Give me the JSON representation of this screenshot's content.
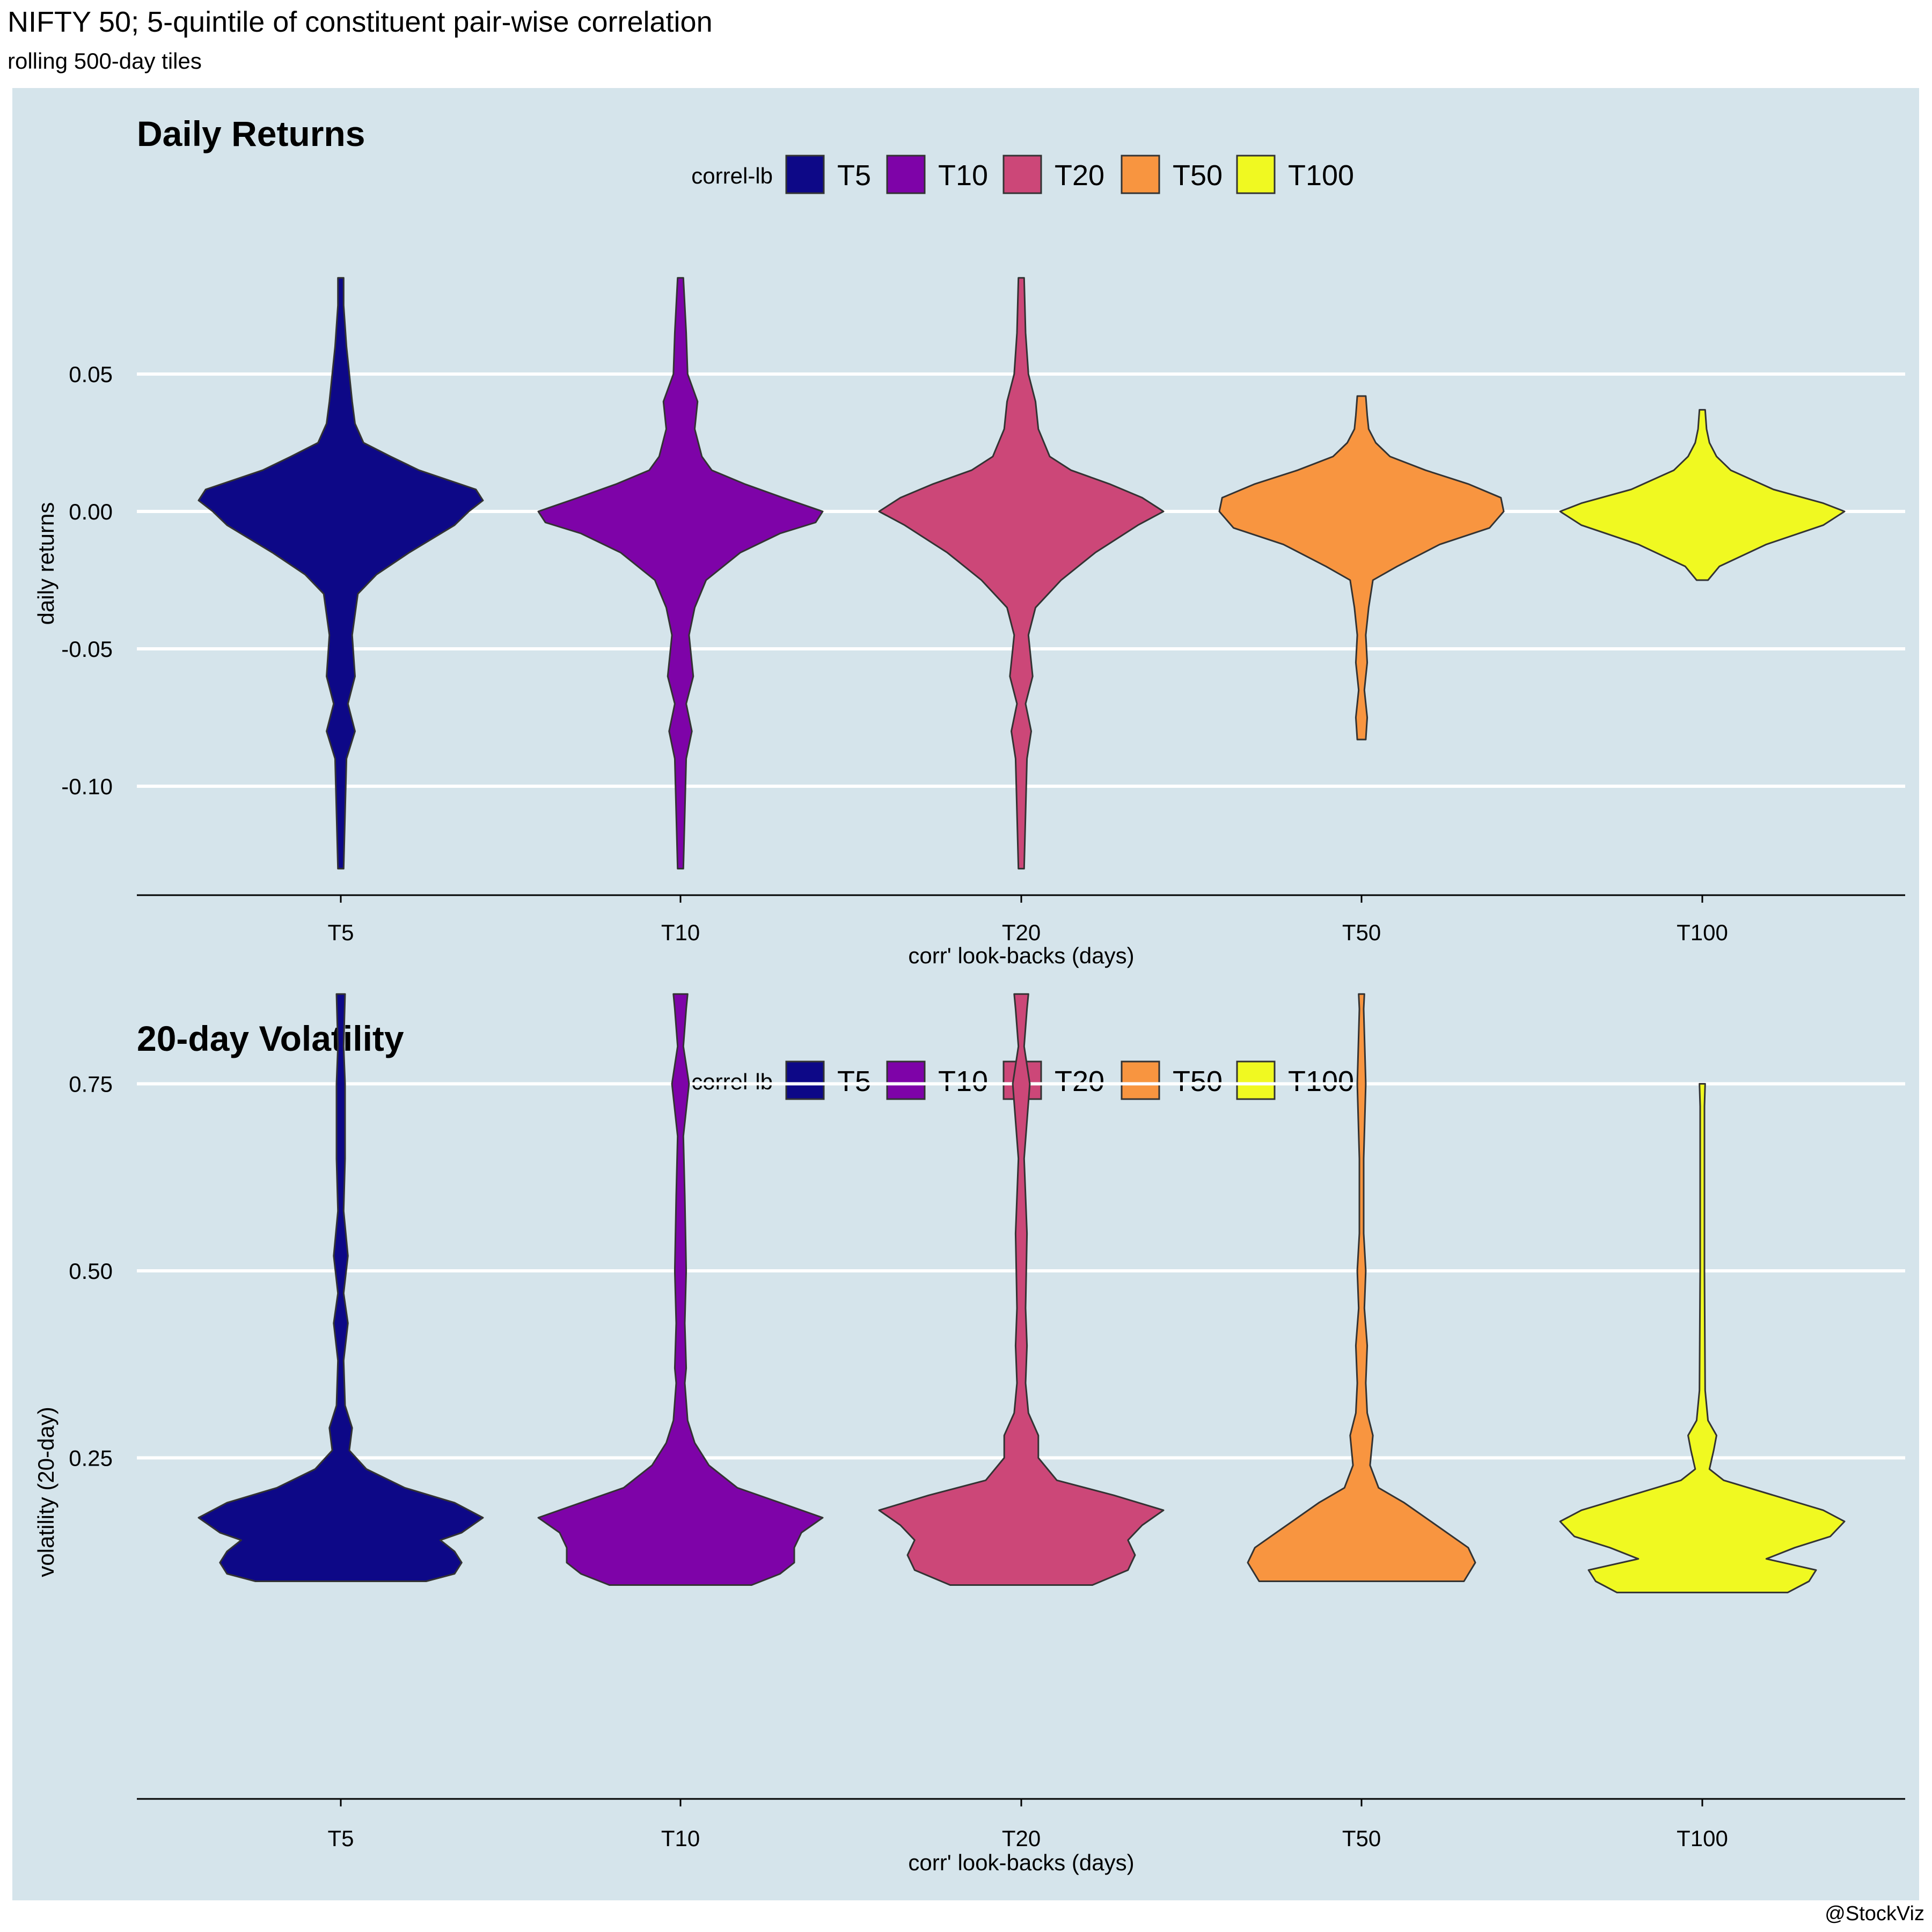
{
  "page": {
    "title": "NIFTY 50; 5-quintile of constituent pair-wise correlation",
    "subtitle": "rolling 500-day tiles",
    "credit": "@StockViz"
  },
  "chart_data": [
    {
      "type": "violin",
      "title": "Daily Returns",
      "xlabel": "corr' look-backs (days)",
      "ylabel": "daily returns",
      "ylim": [
        -0.14,
        0.095
      ],
      "yticks": [
        0.05,
        0.0,
        -0.05,
        -0.1
      ],
      "ytick_labels": [
        "0.05",
        "0.00",
        "-0.05",
        "-0.10"
      ],
      "grid": true,
      "legend": {
        "title": "correl-lb",
        "position": "top",
        "entries": [
          "T5",
          "T10",
          "T20",
          "T50",
          "T100"
        ]
      },
      "categories": [
        "T5",
        "T10",
        "T20",
        "T50",
        "T100"
      ],
      "colors": [
        "#0d0887",
        "#7e03a8",
        "#cc4778",
        "#f89540",
        "#f0f921"
      ],
      "series": [
        {
          "name": "T5",
          "density": [
            [
              -0.13,
              0.02
            ],
            [
              -0.09,
              0.04
            ],
            [
              -0.08,
              0.1
            ],
            [
              -0.07,
              0.05
            ],
            [
              -0.06,
              0.1
            ],
            [
              -0.045,
              0.08
            ],
            [
              -0.03,
              0.12
            ],
            [
              -0.023,
              0.25
            ],
            [
              -0.015,
              0.48
            ],
            [
              -0.005,
              0.8
            ],
            [
              0.0,
              0.9
            ],
            [
              0.004,
              1.0
            ],
            [
              0.008,
              0.95
            ],
            [
              0.015,
              0.55
            ],
            [
              0.02,
              0.35
            ],
            [
              0.025,
              0.16
            ],
            [
              0.032,
              0.1
            ],
            [
              0.04,
              0.08
            ],
            [
              0.05,
              0.06
            ],
            [
              0.06,
              0.04
            ],
            [
              0.075,
              0.02
            ],
            [
              0.085,
              0.02
            ]
          ]
        },
        {
          "name": "T10",
          "density": [
            [
              -0.13,
              0.02
            ],
            [
              -0.09,
              0.04
            ],
            [
              -0.08,
              0.08
            ],
            [
              -0.07,
              0.04
            ],
            [
              -0.06,
              0.09
            ],
            [
              -0.045,
              0.06
            ],
            [
              -0.035,
              0.1
            ],
            [
              -0.025,
              0.18
            ],
            [
              -0.015,
              0.42
            ],
            [
              -0.008,
              0.7
            ],
            [
              -0.004,
              0.95
            ],
            [
              0.0,
              1.0
            ],
            [
              0.005,
              0.72
            ],
            [
              0.01,
              0.45
            ],
            [
              0.015,
              0.22
            ],
            [
              0.02,
              0.15
            ],
            [
              0.03,
              0.1
            ],
            [
              0.04,
              0.12
            ],
            [
              0.05,
              0.05
            ],
            [
              0.065,
              0.04
            ],
            [
              0.085,
              0.02
            ]
          ]
        },
        {
          "name": "T20",
          "density": [
            [
              -0.13,
              0.02
            ],
            [
              -0.09,
              0.04
            ],
            [
              -0.08,
              0.07
            ],
            [
              -0.07,
              0.03
            ],
            [
              -0.06,
              0.08
            ],
            [
              -0.045,
              0.05
            ],
            [
              -0.035,
              0.1
            ],
            [
              -0.025,
              0.28
            ],
            [
              -0.015,
              0.52
            ],
            [
              -0.005,
              0.82
            ],
            [
              0.0,
              1.0
            ],
            [
              0.005,
              0.85
            ],
            [
              0.01,
              0.62
            ],
            [
              0.015,
              0.35
            ],
            [
              0.02,
              0.2
            ],
            [
              0.03,
              0.12
            ],
            [
              0.04,
              0.1
            ],
            [
              0.05,
              0.05
            ],
            [
              0.065,
              0.03
            ],
            [
              0.085,
              0.02
            ]
          ]
        },
        {
          "name": "T50",
          "density": [
            [
              -0.083,
              0.03
            ],
            [
              -0.075,
              0.04
            ],
            [
              -0.065,
              0.02
            ],
            [
              -0.055,
              0.04
            ],
            [
              -0.045,
              0.03
            ],
            [
              -0.035,
              0.05
            ],
            [
              -0.025,
              0.08
            ],
            [
              -0.02,
              0.25
            ],
            [
              -0.012,
              0.55
            ],
            [
              -0.006,
              0.9
            ],
            [
              0.0,
              1.0
            ],
            [
              0.005,
              0.98
            ],
            [
              0.01,
              0.75
            ],
            [
              0.015,
              0.45
            ],
            [
              0.02,
              0.2
            ],
            [
              0.025,
              0.1
            ],
            [
              0.03,
              0.05
            ],
            [
              0.035,
              0.04
            ],
            [
              0.042,
              0.03
            ]
          ]
        },
        {
          "name": "T100",
          "density": [
            [
              -0.025,
              0.04
            ],
            [
              -0.02,
              0.12
            ],
            [
              -0.012,
              0.45
            ],
            [
              -0.005,
              0.85
            ],
            [
              0.0,
              1.0
            ],
            [
              0.003,
              0.85
            ],
            [
              0.008,
              0.5
            ],
            [
              0.015,
              0.2
            ],
            [
              0.02,
              0.1
            ],
            [
              0.025,
              0.05
            ],
            [
              0.03,
              0.03
            ],
            [
              0.037,
              0.02
            ]
          ]
        }
      ]
    },
    {
      "type": "violin",
      "title": "20-day Volatility",
      "xlabel": "corr' look-backs (days)",
      "ylabel": "volatility (20-day)",
      "ylim": [
        0.035,
        0.92
      ],
      "yticks": [
        0.75,
        0.5,
        0.25
      ],
      "ytick_labels": [
        "0.75",
        "0.50",
        "0.25"
      ],
      "grid": true,
      "legend": {
        "title": "correl-lb",
        "position": "top",
        "entries": [
          "T5",
          "T10",
          "T20",
          "T50",
          "T100"
        ]
      },
      "categories": [
        "T5",
        "T10",
        "T20",
        "T50",
        "T100"
      ],
      "colors": [
        "#0d0887",
        "#7e03a8",
        "#cc4778",
        "#f89540",
        "#f0f921"
      ],
      "series": [
        {
          "name": "T5",
          "density": [
            [
              0.085,
              0.6
            ],
            [
              0.095,
              0.8
            ],
            [
              0.11,
              0.85
            ],
            [
              0.125,
              0.8
            ],
            [
              0.14,
              0.7
            ],
            [
              0.15,
              0.85
            ],
            [
              0.17,
              1.0
            ],
            [
              0.19,
              0.8
            ],
            [
              0.21,
              0.45
            ],
            [
              0.235,
              0.18
            ],
            [
              0.26,
              0.06
            ],
            [
              0.29,
              0.08
            ],
            [
              0.32,
              0.03
            ],
            [
              0.38,
              0.02
            ],
            [
              0.43,
              0.05
            ],
            [
              0.47,
              0.02
            ],
            [
              0.52,
              0.05
            ],
            [
              0.58,
              0.02
            ],
            [
              0.65,
              0.03
            ],
            [
              0.75,
              0.03
            ],
            [
              0.8,
              0.02
            ],
            [
              0.87,
              0.03
            ]
          ]
        },
        {
          "name": "T10",
          "density": [
            [
              0.08,
              0.5
            ],
            [
              0.095,
              0.7
            ],
            [
              0.11,
              0.8
            ],
            [
              0.13,
              0.8
            ],
            [
              0.15,
              0.85
            ],
            [
              0.17,
              1.0
            ],
            [
              0.19,
              0.7
            ],
            [
              0.21,
              0.4
            ],
            [
              0.24,
              0.2
            ],
            [
              0.27,
              0.1
            ],
            [
              0.3,
              0.05
            ],
            [
              0.35,
              0.03
            ],
            [
              0.37,
              0.04
            ],
            [
              0.43,
              0.03
            ],
            [
              0.5,
              0.04
            ],
            [
              0.6,
              0.03
            ],
            [
              0.68,
              0.02
            ],
            [
              0.75,
              0.06
            ],
            [
              0.8,
              0.02
            ],
            [
              0.85,
              0.04
            ],
            [
              0.87,
              0.05
            ]
          ]
        },
        {
          "name": "T20",
          "density": [
            [
              0.08,
              0.5
            ],
            [
              0.1,
              0.75
            ],
            [
              0.12,
              0.8
            ],
            [
              0.14,
              0.75
            ],
            [
              0.16,
              0.85
            ],
            [
              0.18,
              1.0
            ],
            [
              0.2,
              0.65
            ],
            [
              0.22,
              0.25
            ],
            [
              0.25,
              0.12
            ],
            [
              0.28,
              0.12
            ],
            [
              0.31,
              0.05
            ],
            [
              0.35,
              0.03
            ],
            [
              0.4,
              0.04
            ],
            [
              0.45,
              0.03
            ],
            [
              0.55,
              0.04
            ],
            [
              0.65,
              0.02
            ],
            [
              0.75,
              0.06
            ],
            [
              0.8,
              0.02
            ],
            [
              0.85,
              0.04
            ],
            [
              0.87,
              0.05
            ]
          ]
        },
        {
          "name": "T50",
          "density": [
            [
              0.085,
              0.72
            ],
            [
              0.11,
              0.8
            ],
            [
              0.13,
              0.75
            ],
            [
              0.15,
              0.6
            ],
            [
              0.17,
              0.45
            ],
            [
              0.19,
              0.3
            ],
            [
              0.21,
              0.12
            ],
            [
              0.24,
              0.06
            ],
            [
              0.28,
              0.08
            ],
            [
              0.31,
              0.04
            ],
            [
              0.35,
              0.03
            ],
            [
              0.4,
              0.04
            ],
            [
              0.45,
              0.02
            ],
            [
              0.5,
              0.03
            ],
            [
              0.55,
              0.01
            ],
            [
              0.65,
              0.01
            ],
            [
              0.75,
              0.03
            ],
            [
              0.85,
              0.01
            ],
            [
              0.87,
              0.02
            ]
          ]
        },
        {
          "name": "T100",
          "density": [
            [
              0.07,
              0.6
            ],
            [
              0.085,
              0.75
            ],
            [
              0.1,
              0.8
            ],
            [
              0.115,
              0.45
            ],
            [
              0.13,
              0.65
            ],
            [
              0.145,
              0.9
            ],
            [
              0.165,
              1.0
            ],
            [
              0.18,
              0.85
            ],
            [
              0.2,
              0.5
            ],
            [
              0.22,
              0.15
            ],
            [
              0.235,
              0.05
            ],
            [
              0.26,
              0.08
            ],
            [
              0.28,
              0.1
            ],
            [
              0.3,
              0.04
            ],
            [
              0.34,
              0.02
            ],
            [
              0.5,
              0.01
            ],
            [
              0.72,
              0.01
            ],
            [
              0.75,
              0.02
            ]
          ]
        }
      ]
    }
  ]
}
